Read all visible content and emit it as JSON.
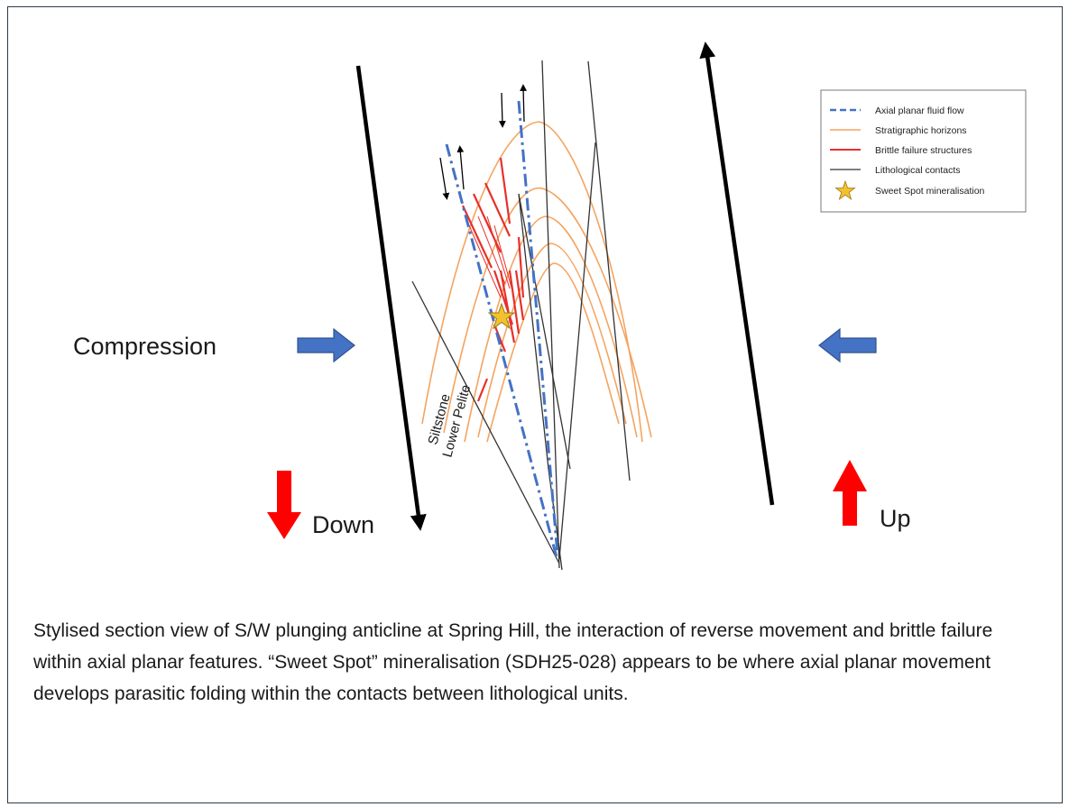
{
  "labels": {
    "compression": "Compression",
    "down": "Down",
    "up": "Up",
    "siltstone": "Siltstone",
    "lower_pelite": "Lower Pelite"
  },
  "legend": {
    "items": [
      {
        "label": "Axial planar fluid flow",
        "color": "#4472c4",
        "style": "dashed"
      },
      {
        "label": "Stratigraphic horizons",
        "color": "#f4a460",
        "style": "solid"
      },
      {
        "label": "Brittle failure structures",
        "color": "#e8302a",
        "style": "solid"
      },
      {
        "label": "Lithological contacts",
        "color": "#333333",
        "style": "solid"
      },
      {
        "label": "Sweet Spot mineralisation",
        "color": "#f2c12e",
        "style": "star"
      }
    ]
  },
  "caption": "Stylised section view of S/W plunging anticline at Spring Hill, the interaction of reverse movement and brittle failure within axial planar features. “Sweet Spot” mineralisation (SDH25-028) appears to be where axial planar movement develops parasitic folding within the contacts between lithological units.",
  "colors": {
    "arrow_blue": "#4472c4",
    "arrow_red": "#ff0000",
    "horizon": "#f4a460",
    "brittle": "#e8302a",
    "contact": "#333333",
    "star": "#f2c12e"
  }
}
